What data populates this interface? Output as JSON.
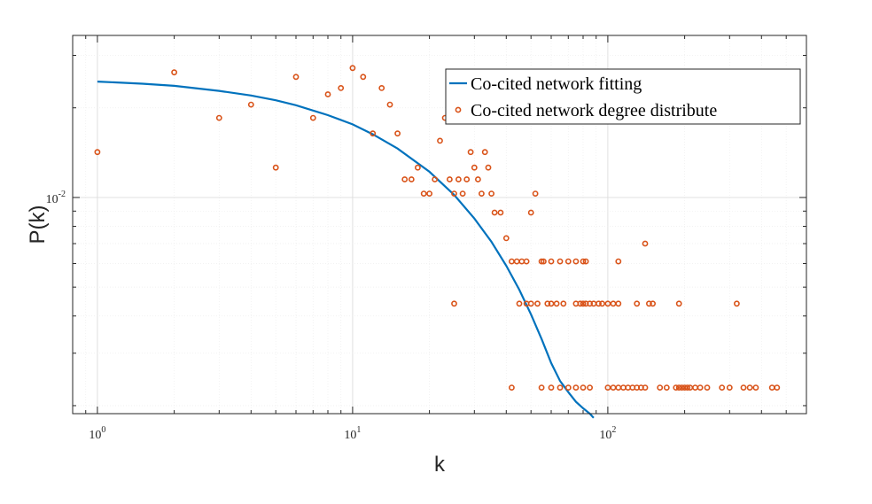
{
  "chart_data": {
    "type": "scatter",
    "x_scale": "log",
    "y_scale": "log",
    "xlabel": "k",
    "ylabel": "P(k)",
    "xlim": [
      0.8,
      600
    ],
    "ylim": [
      0.00188,
      0.035
    ],
    "x_ticks": [
      1,
      10,
      100
    ],
    "x_tick_labels": [
      {
        "base": "10",
        "exp": "0"
      },
      {
        "base": "10",
        "exp": "1"
      },
      {
        "base": "10",
        "exp": "2"
      }
    ],
    "y_ticks": [
      0.01
    ],
    "y_tick_labels": [
      {
        "base": "10",
        "exp": "-2"
      }
    ],
    "grid": true,
    "legend_position": "top-right",
    "series": [
      {
        "name": "Co-cited network fitting",
        "kind": "line",
        "color": "#0072BD",
        "x": [
          1,
          1.5,
          2,
          3,
          4,
          5,
          6,
          8,
          10,
          12,
          15,
          20,
          25,
          30,
          35,
          40,
          45,
          50,
          55,
          60,
          65,
          70,
          75,
          80,
          85,
          88
        ],
        "y": [
          0.0245,
          0.0241,
          0.0237,
          0.0228,
          0.022,
          0.0212,
          0.0204,
          0.0189,
          0.0176,
          0.0163,
          0.0146,
          0.0122,
          0.0102,
          0.0085,
          0.0071,
          0.0059,
          0.0049,
          0.00405,
          0.00335,
          0.00278,
          0.00242,
          0.00222,
          0.00206,
          0.00196,
          0.00188,
          0.00182
        ]
      },
      {
        "name": "Co-cited network degree distribute",
        "kind": "scatter",
        "color": "#D95319",
        "points": [
          [
            1,
            0.0142
          ],
          [
            2,
            0.0263
          ],
          [
            3,
            0.0185
          ],
          [
            4,
            0.0205
          ],
          [
            5,
            0.0126
          ],
          [
            6,
            0.0254
          ],
          [
            7,
            0.0185
          ],
          [
            8,
            0.0222
          ],
          [
            9,
            0.0233
          ],
          [
            10,
            0.0272
          ],
          [
            11,
            0.0254
          ],
          [
            12,
            0.0164
          ],
          [
            13,
            0.0233
          ],
          [
            14,
            0.0205
          ],
          [
            15,
            0.0164
          ],
          [
            16,
            0.0115
          ],
          [
            17,
            0.0115
          ],
          [
            18,
            0.0126
          ],
          [
            19,
            0.0103
          ],
          [
            20,
            0.0103
          ],
          [
            21,
            0.0115
          ],
          [
            22,
            0.0155
          ],
          [
            23,
            0.0185
          ],
          [
            24,
            0.0115
          ],
          [
            25,
            0.0103
          ],
          [
            26,
            0.0115
          ],
          [
            27,
            0.0103
          ],
          [
            28,
            0.0115
          ],
          [
            29,
            0.0142
          ],
          [
            30,
            0.0126
          ],
          [
            31,
            0.0115
          ],
          [
            32,
            0.0103
          ],
          [
            33,
            0.0142
          ],
          [
            34,
            0.0126
          ],
          [
            35,
            0.0103
          ],
          [
            36,
            0.0089
          ],
          [
            38,
            0.0089
          ],
          [
            40,
            0.0073
          ],
          [
            42,
            0.0061
          ],
          [
            44,
            0.0061
          ],
          [
            46,
            0.0061
          ],
          [
            48,
            0.0061
          ],
          [
            50,
            0.0089
          ],
          [
            52,
            0.0103
          ],
          [
            55,
            0.0061
          ],
          [
            56,
            0.0061
          ],
          [
            60,
            0.0061
          ],
          [
            65,
            0.0061
          ],
          [
            70,
            0.0061
          ],
          [
            75,
            0.0061
          ],
          [
            80,
            0.0061
          ],
          [
            82,
            0.0061
          ],
          [
            110,
            0.0061
          ],
          [
            140,
            0.007
          ],
          [
            25,
            0.0044
          ],
          [
            45,
            0.0044
          ],
          [
            48,
            0.0044
          ],
          [
            50,
            0.0044
          ],
          [
            53,
            0.0044
          ],
          [
            58,
            0.0044
          ],
          [
            60,
            0.0044
          ],
          [
            63,
            0.0044
          ],
          [
            67,
            0.0044
          ],
          [
            75,
            0.0044
          ],
          [
            78,
            0.0044
          ],
          [
            80,
            0.0044
          ],
          [
            82,
            0.0044
          ],
          [
            85,
            0.0044
          ],
          [
            88,
            0.0044
          ],
          [
            92,
            0.0044
          ],
          [
            95,
            0.0044
          ],
          [
            100,
            0.0044
          ],
          [
            105,
            0.0044
          ],
          [
            110,
            0.0044
          ],
          [
            130,
            0.0044
          ],
          [
            145,
            0.0044
          ],
          [
            150,
            0.0044
          ],
          [
            190,
            0.0044
          ],
          [
            320,
            0.0044
          ],
          [
            42,
            0.0023
          ],
          [
            55,
            0.0023
          ],
          [
            60,
            0.0023
          ],
          [
            65,
            0.0023
          ],
          [
            70,
            0.0023
          ],
          [
            75,
            0.0023
          ],
          [
            80,
            0.0023
          ],
          [
            85,
            0.0023
          ],
          [
            100,
            0.0023
          ],
          [
            105,
            0.0023
          ],
          [
            110,
            0.0023
          ],
          [
            115,
            0.0023
          ],
          [
            120,
            0.0023
          ],
          [
            125,
            0.0023
          ],
          [
            130,
            0.0023
          ],
          [
            135,
            0.0023
          ],
          [
            140,
            0.0023
          ],
          [
            160,
            0.0023
          ],
          [
            170,
            0.0023
          ],
          [
            185,
            0.0023
          ],
          [
            190,
            0.0023
          ],
          [
            195,
            0.0023
          ],
          [
            200,
            0.0023
          ],
          [
            205,
            0.0023
          ],
          [
            210,
            0.0023
          ],
          [
            220,
            0.0023
          ],
          [
            230,
            0.0023
          ],
          [
            245,
            0.0023
          ],
          [
            280,
            0.0023
          ],
          [
            300,
            0.0023
          ],
          [
            340,
            0.0023
          ],
          [
            360,
            0.0023
          ],
          [
            380,
            0.0023
          ],
          [
            440,
            0.0023
          ],
          [
            460,
            0.0023
          ]
        ]
      }
    ]
  }
}
